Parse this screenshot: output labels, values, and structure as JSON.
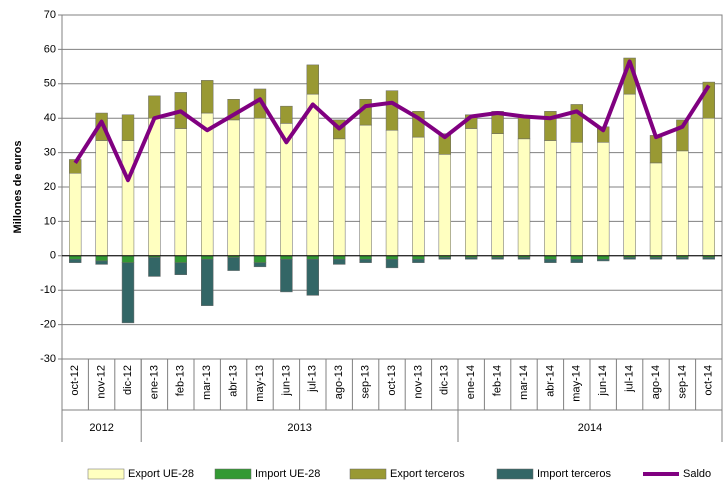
{
  "chart_data": {
    "type": "bar",
    "ylabel": "Millones de euros",
    "categories": [
      "oct-12",
      "nov-12",
      "dic-12",
      "ene-13",
      "feb-13",
      "mar-13",
      "abr-13",
      "may-13",
      "jun-13",
      "jul-13",
      "ago-13",
      "sep-13",
      "oct-13",
      "nov-13",
      "dic-13",
      "ene-14",
      "feb-14",
      "mar-14",
      "abr-14",
      "may-14",
      "jun-14",
      "jul-14",
      "ago-14",
      "sep-14",
      "oct-14"
    ],
    "year_groups": [
      {
        "label": "2012",
        "span": 3
      },
      {
        "label": "2013",
        "span": 12
      },
      {
        "label": "2014",
        "span": 10
      }
    ],
    "ylim": [
      -30,
      70
    ],
    "yticks": [
      -30,
      -20,
      -10,
      0,
      10,
      20,
      30,
      40,
      50,
      60,
      70
    ],
    "grid": true,
    "legend": "bottom",
    "series": [
      {
        "name": "Export UE-28",
        "kind": "bar",
        "color": "#ffffc0",
        "values": [
          24,
          33.5,
          33.5,
          40,
          37,
          41.5,
          39.5,
          40,
          38.5,
          47,
          34,
          38,
          36.5,
          34.5,
          29.5,
          37,
          35.5,
          34,
          33.5,
          33,
          33,
          47,
          27,
          30.5,
          40
        ]
      },
      {
        "name": "Import UE-28",
        "kind": "bar",
        "color": "#339933",
        "values": [
          -1,
          -1.5,
          -2,
          -0.5,
          -2,
          -1,
          -0.5,
          -2,
          -1,
          -1,
          -1,
          -1,
          -1,
          -1,
          -0.5,
          -0.5,
          -0.5,
          -0.5,
          -1,
          -1,
          -1,
          -0.5,
          -0.5,
          -0.5,
          -0.5
        ]
      },
      {
        "name": "Export terceros",
        "kind": "bar",
        "color": "#999933",
        "values": [
          4,
          8,
          7.5,
          6.5,
          10.5,
          9.5,
          6,
          8.5,
          5,
          8.5,
          5.5,
          7.5,
          11.5,
          7.5,
          6,
          4,
          6.5,
          6.5,
          8.5,
          11,
          4.5,
          10.5,
          8,
          9,
          10.5
        ]
      },
      {
        "name": "Import terceros",
        "kind": "bar",
        "color": "#336666",
        "values": [
          -1,
          -1,
          -17.5,
          -5.5,
          -3.5,
          -13.5,
          -3.8,
          -1.2,
          -9.5,
          -10.5,
          -1.5,
          -1,
          -2.5,
          -1,
          -0.5,
          -0.5,
          -0.5,
          -0.5,
          -1,
          -1,
          -0.5,
          -0.5,
          -0.5,
          -0.5,
          -0.5
        ]
      },
      {
        "name": "Saldo",
        "kind": "line",
        "color": "#800080",
        "values": [
          27,
          39,
          22,
          40,
          42,
          36.5,
          41,
          45.5,
          33,
          44,
          37,
          43.5,
          44.5,
          40,
          34.5,
          40.5,
          41.5,
          40.5,
          40,
          42,
          36.5,
          56.5,
          34.5,
          37.5,
          49.5
        ]
      }
    ]
  }
}
